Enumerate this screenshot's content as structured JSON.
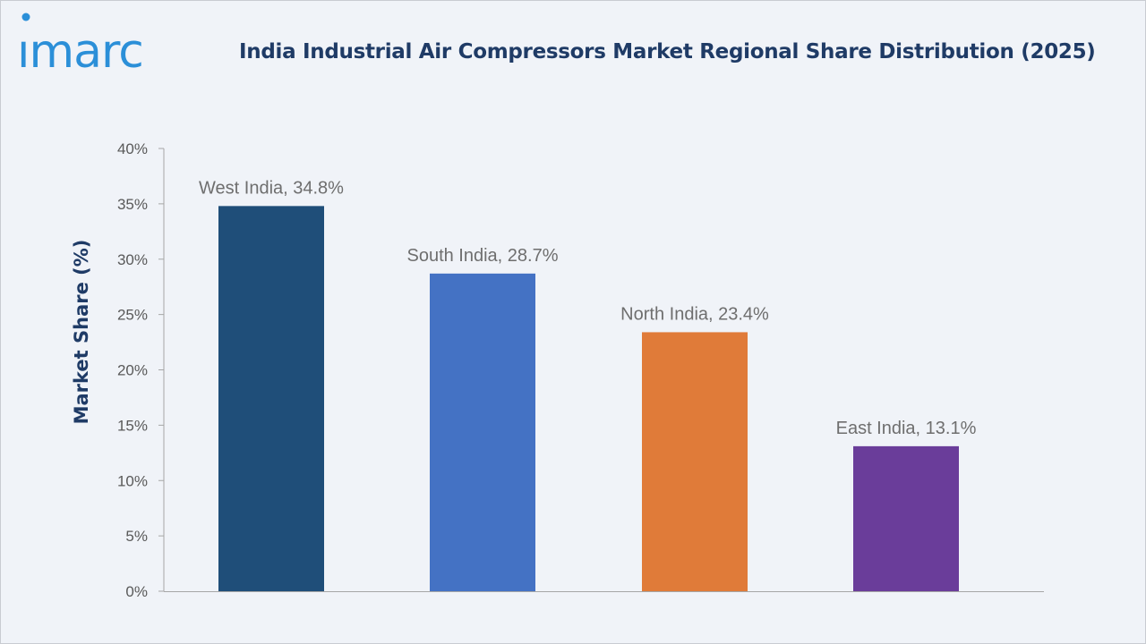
{
  "brand": {
    "logo_text": "imarc",
    "color": "#2b8fd8"
  },
  "title": "India Industrial Air Compressors Market Regional Share Distribution (2025)",
  "chart_data": {
    "type": "bar",
    "title": "India Industrial Air Compressors Market Regional Share Distribution (2025)",
    "categories": [
      "West India",
      "South India",
      "North India",
      "East India"
    ],
    "values": [
      34.8,
      28.7,
      23.4,
      13.1
    ],
    "data_labels": [
      "West India, 34.8%",
      "South India, 28.7%",
      "North India, 23.4%",
      "East India, 13.1%"
    ],
    "colors": [
      "#1f4e79",
      "#4472c4",
      "#e07b39",
      "#6a3d9a"
    ],
    "xlabel": "",
    "ylabel": "Market Share (%)",
    "ylim": [
      0,
      40
    ],
    "yticks": [
      0,
      5,
      10,
      15,
      20,
      25,
      30,
      35,
      40
    ],
    "ytick_labels": [
      "0%",
      "5%",
      "10%",
      "15%",
      "20%",
      "25%",
      "30%",
      "35%",
      "40%"
    ],
    "grid": false,
    "legend": "none"
  }
}
